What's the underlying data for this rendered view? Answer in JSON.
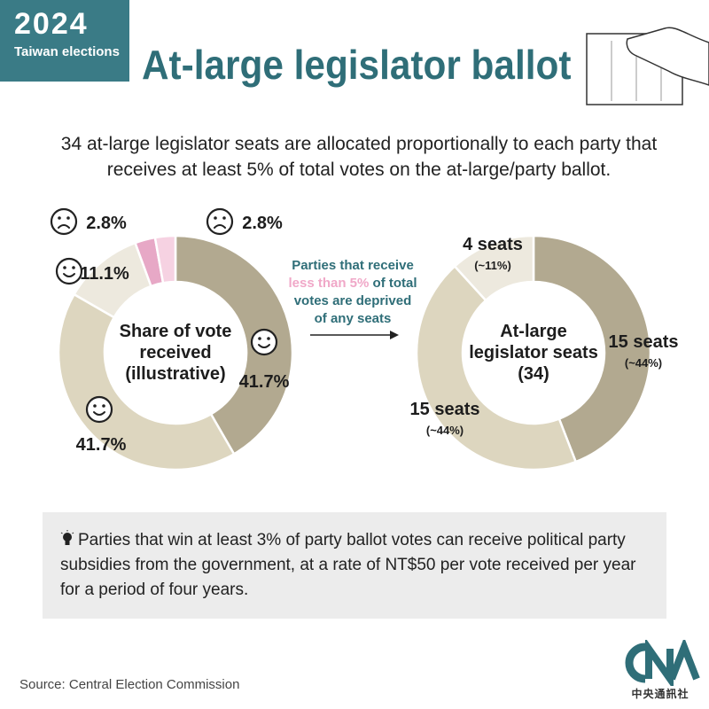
{
  "header": {
    "badge_year": "2024",
    "badge_subtitle": "Taiwan elections",
    "title": "At-large legislator ballot"
  },
  "intro": "34 at-large legislator seats are allocated proportionally to each party that receives at least 5% of total votes on the at-large/party ballot.",
  "middle_note": {
    "line1": "Parties that receive",
    "line2_highlight": "less than 5%",
    "line2_rest": " of total",
    "line3": "votes are deprived",
    "line4": "of any seats"
  },
  "chart_data": [
    {
      "type": "pie",
      "title_lines": [
        "Share of vote",
        "received",
        "(illustrative)"
      ],
      "slices": [
        {
          "label": "41.7%",
          "value": 41.7,
          "color": "#b2a990",
          "face": "happy"
        },
        {
          "label": "41.7%",
          "value": 41.7,
          "color": "#ddd6bf",
          "face": "happy"
        },
        {
          "label": "11.1%",
          "value": 11.1,
          "color": "#ede9de",
          "face": "happy"
        },
        {
          "label": "2.8%",
          "value": 2.8,
          "color": "#e7a8c6",
          "face": "sad"
        },
        {
          "label": "2.8%",
          "value": 2.8,
          "color": "#f6d2e2",
          "face": "sad"
        }
      ]
    },
    {
      "type": "pie",
      "title_lines": [
        "At-large",
        "legislator seats",
        "(34)"
      ],
      "slices": [
        {
          "label": "15 seats",
          "sublabel": "(~44%)",
          "value": 15,
          "color": "#b2a990"
        },
        {
          "label": "15 seats",
          "sublabel": "(~44%)",
          "value": 15,
          "color": "#ddd6bf"
        },
        {
          "label": "4 seats",
          "sublabel": "(~11%)",
          "value": 4,
          "color": "#ede9de"
        }
      ]
    }
  ],
  "note": "Parties that win at least 3% of party ballot votes can receive political party subsidies from the government, at a rate of NT$50 per vote received per year for a period of four years.",
  "source": "Source: Central Election Commission",
  "logo_text": "中央通訊社",
  "colors": {
    "accent": "#2f6e78",
    "highlight_pink": "#f0a8c8"
  }
}
